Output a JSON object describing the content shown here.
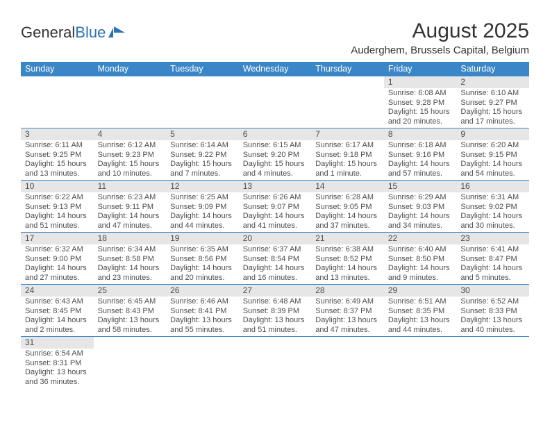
{
  "logo": {
    "part1": "General",
    "part2": "Blue"
  },
  "title": "August 2025",
  "subtitle": "Auderghem, Brussels Capital, Belgium",
  "colors": {
    "header_bg": "#3b86c6",
    "header_fg": "#ffffff",
    "daynum_bg": "#e6e6e6",
    "row_border": "#3b86c6",
    "text": "#4d4d4d"
  },
  "dayNames": [
    "Sunday",
    "Monday",
    "Tuesday",
    "Wednesday",
    "Thursday",
    "Friday",
    "Saturday"
  ],
  "firstWeekday": 5,
  "daysInMonth": 31,
  "days": {
    "1": {
      "sunrise": "6:08 AM",
      "sunset": "9:28 PM",
      "daylight": "15 hours and 20 minutes."
    },
    "2": {
      "sunrise": "6:10 AM",
      "sunset": "9:27 PM",
      "daylight": "15 hours and 17 minutes."
    },
    "3": {
      "sunrise": "6:11 AM",
      "sunset": "9:25 PM",
      "daylight": "15 hours and 13 minutes."
    },
    "4": {
      "sunrise": "6:12 AM",
      "sunset": "9:23 PM",
      "daylight": "15 hours and 10 minutes."
    },
    "5": {
      "sunrise": "6:14 AM",
      "sunset": "9:22 PM",
      "daylight": "15 hours and 7 minutes."
    },
    "6": {
      "sunrise": "6:15 AM",
      "sunset": "9:20 PM",
      "daylight": "15 hours and 4 minutes."
    },
    "7": {
      "sunrise": "6:17 AM",
      "sunset": "9:18 PM",
      "daylight": "15 hours and 1 minute."
    },
    "8": {
      "sunrise": "6:18 AM",
      "sunset": "9:16 PM",
      "daylight": "14 hours and 57 minutes."
    },
    "9": {
      "sunrise": "6:20 AM",
      "sunset": "9:15 PM",
      "daylight": "14 hours and 54 minutes."
    },
    "10": {
      "sunrise": "6:22 AM",
      "sunset": "9:13 PM",
      "daylight": "14 hours and 51 minutes."
    },
    "11": {
      "sunrise": "6:23 AM",
      "sunset": "9:11 PM",
      "daylight": "14 hours and 47 minutes."
    },
    "12": {
      "sunrise": "6:25 AM",
      "sunset": "9:09 PM",
      "daylight": "14 hours and 44 minutes."
    },
    "13": {
      "sunrise": "6:26 AM",
      "sunset": "9:07 PM",
      "daylight": "14 hours and 41 minutes."
    },
    "14": {
      "sunrise": "6:28 AM",
      "sunset": "9:05 PM",
      "daylight": "14 hours and 37 minutes."
    },
    "15": {
      "sunrise": "6:29 AM",
      "sunset": "9:03 PM",
      "daylight": "14 hours and 34 minutes."
    },
    "16": {
      "sunrise": "6:31 AM",
      "sunset": "9:02 PM",
      "daylight": "14 hours and 30 minutes."
    },
    "17": {
      "sunrise": "6:32 AM",
      "sunset": "9:00 PM",
      "daylight": "14 hours and 27 minutes."
    },
    "18": {
      "sunrise": "6:34 AM",
      "sunset": "8:58 PM",
      "daylight": "14 hours and 23 minutes."
    },
    "19": {
      "sunrise": "6:35 AM",
      "sunset": "8:56 PM",
      "daylight": "14 hours and 20 minutes."
    },
    "20": {
      "sunrise": "6:37 AM",
      "sunset": "8:54 PM",
      "daylight": "14 hours and 16 minutes."
    },
    "21": {
      "sunrise": "6:38 AM",
      "sunset": "8:52 PM",
      "daylight": "14 hours and 13 minutes."
    },
    "22": {
      "sunrise": "6:40 AM",
      "sunset": "8:50 PM",
      "daylight": "14 hours and 9 minutes."
    },
    "23": {
      "sunrise": "6:41 AM",
      "sunset": "8:47 PM",
      "daylight": "14 hours and 5 minutes."
    },
    "24": {
      "sunrise": "6:43 AM",
      "sunset": "8:45 PM",
      "daylight": "14 hours and 2 minutes."
    },
    "25": {
      "sunrise": "6:45 AM",
      "sunset": "8:43 PM",
      "daylight": "13 hours and 58 minutes."
    },
    "26": {
      "sunrise": "6:46 AM",
      "sunset": "8:41 PM",
      "daylight": "13 hours and 55 minutes."
    },
    "27": {
      "sunrise": "6:48 AM",
      "sunset": "8:39 PM",
      "daylight": "13 hours and 51 minutes."
    },
    "28": {
      "sunrise": "6:49 AM",
      "sunset": "8:37 PM",
      "daylight": "13 hours and 47 minutes."
    },
    "29": {
      "sunrise": "6:51 AM",
      "sunset": "8:35 PM",
      "daylight": "13 hours and 44 minutes."
    },
    "30": {
      "sunrise": "6:52 AM",
      "sunset": "8:33 PM",
      "daylight": "13 hours and 40 minutes."
    },
    "31": {
      "sunrise": "6:54 AM",
      "sunset": "8:31 PM",
      "daylight": "13 hours and 36 minutes."
    }
  },
  "labels": {
    "sunrise": "Sunrise:",
    "sunset": "Sunset:",
    "daylight": "Daylight:"
  }
}
